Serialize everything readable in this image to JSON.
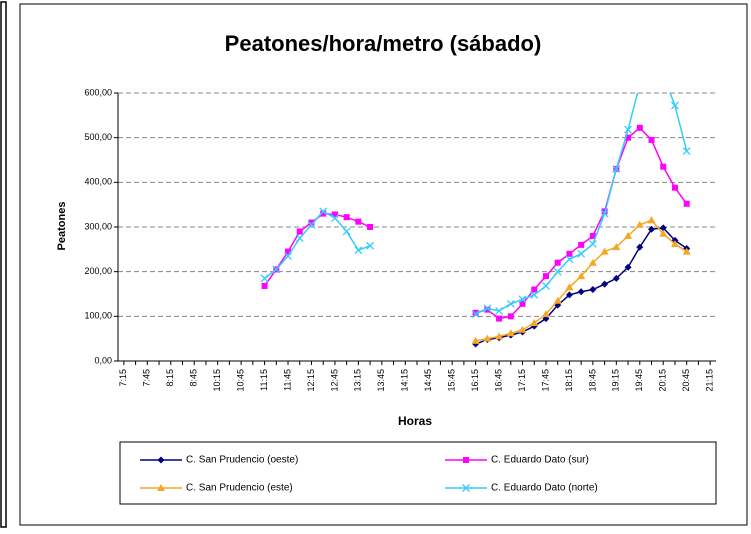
{
  "chart_data": {
    "type": "line",
    "title": "Peatones/hora/metro (sábado)",
    "x_label": "Horas",
    "y_label": "Peatones",
    "categories": [
      "7:15",
      null,
      "7:45",
      null,
      "8:15",
      null,
      "8:45",
      null,
      "10:15",
      null,
      "10:45",
      null,
      "11:15",
      null,
      "11:45",
      null,
      "12:15",
      null,
      "12:45",
      null,
      "13:15",
      null,
      "13:45",
      null,
      "14:15",
      null,
      "14:45",
      null,
      "15:45",
      null,
      "16:15",
      null,
      "16:45",
      null,
      "17:15",
      null,
      "17:45",
      null,
      "18:15",
      null,
      "18:45",
      null,
      "19:15",
      null,
      "19:45",
      null,
      "20:15",
      null,
      "20:45",
      null,
      "21:15"
    ],
    "ylim": [
      0,
      600
    ],
    "yticks": [
      {
        "value": 0,
        "label": "0,00"
      },
      {
        "value": 100,
        "label": "100,00"
      },
      {
        "value": 200,
        "label": "200,00"
      },
      {
        "value": 300,
        "label": "300,00"
      },
      {
        "value": 400,
        "label": "400,00"
      },
      {
        "value": 500,
        "label": "500,00"
      },
      {
        "value": 600,
        "label": "600,00"
      }
    ],
    "grid": true,
    "series": [
      {
        "name": "C. San Prudencio (oeste)",
        "color": "#000080",
        "marker": "diamond",
        "values": [
          null,
          null,
          null,
          null,
          null,
          null,
          null,
          null,
          null,
          null,
          null,
          null,
          null,
          null,
          null,
          null,
          null,
          null,
          null,
          null,
          null,
          null,
          null,
          null,
          null,
          null,
          null,
          null,
          null,
          null,
          38,
          48,
          52,
          58,
          65,
          78,
          95,
          125,
          148,
          155,
          160,
          172,
          185,
          210,
          255,
          295,
          298,
          270,
          252,
          null,
          null
        ]
      },
      {
        "name": "C. Eduardo Dato (sur)",
        "color": "#ff00ff",
        "marker": "square",
        "values": [
          null,
          null,
          null,
          null,
          null,
          null,
          null,
          null,
          null,
          null,
          null,
          null,
          168,
          205,
          245,
          290,
          310,
          330,
          328,
          322,
          312,
          300,
          null,
          null,
          null,
          null,
          null,
          null,
          null,
          null,
          108,
          115,
          95,
          100,
          128,
          160,
          190,
          220,
          240,
          260,
          280,
          335,
          430,
          500,
          522,
          495,
          435,
          388,
          352,
          null,
          null
        ]
      },
      {
        "name": "C. San Prudencio (este)",
        "color": "#f5a623",
        "marker": "triangle",
        "values": [
          null,
          null,
          null,
          null,
          null,
          null,
          null,
          null,
          null,
          null,
          null,
          null,
          null,
          null,
          null,
          null,
          null,
          null,
          null,
          null,
          null,
          null,
          null,
          null,
          null,
          null,
          null,
          null,
          null,
          null,
          45,
          50,
          55,
          62,
          70,
          85,
          105,
          135,
          165,
          190,
          220,
          245,
          255,
          280,
          305,
          315,
          285,
          262,
          245,
          null,
          null
        ]
      },
      {
        "name": "C. Eduardo Dato (norte)",
        "color": "#33ccff",
        "marker": "x",
        "values": [
          null,
          null,
          null,
          null,
          null,
          null,
          null,
          null,
          null,
          null,
          null,
          null,
          185,
          205,
          235,
          275,
          305,
          335,
          320,
          290,
          248,
          258,
          null,
          null,
          null,
          null,
          null,
          null,
          null,
          null,
          105,
          118,
          112,
          128,
          138,
          148,
          168,
          200,
          228,
          240,
          262,
          330,
          430,
          518,
          620,
          650,
          640,
          572,
          470,
          null,
          null
        ]
      }
    ]
  }
}
